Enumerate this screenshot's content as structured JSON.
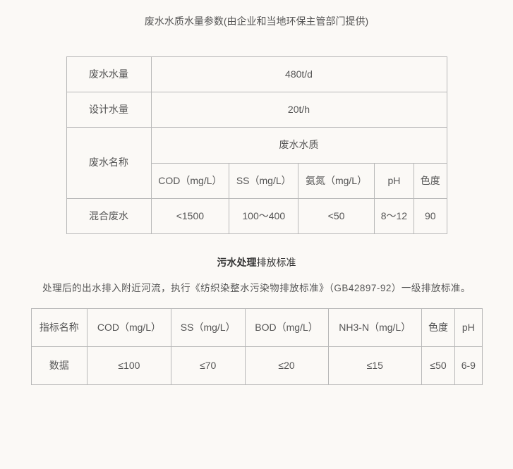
{
  "title": "废水水质水量参数(由企业和当地环保主管部门提供)",
  "table1": {
    "row1_label": "废水水量",
    "row1_value": "480t/d",
    "row2_label": "设计水量",
    "row2_value": "20t/h",
    "row3_label": "废水名称",
    "row3_header": "废水水质",
    "sub_headers": {
      "cod": "COD（mg/L）",
      "ss": "SS（mg/L）",
      "nh": "氨氮（mg/L）",
      "ph": "pH",
      "color": "色度"
    },
    "data_row": {
      "name": "混合废水",
      "cod": "<1500",
      "ss": "100～400",
      "nh": "<50",
      "ph": "8～12",
      "color": "90"
    }
  },
  "section_heading": {
    "bold": "污水处理",
    "rest": "排放标准"
  },
  "description": "处理后的出水排入附近河流，执行《纺织染整水污染物排放标准》（GB42897-92）一级排放标准。",
  "table2": {
    "headers": {
      "name": "指标名称",
      "cod": "COD（mg/L）",
      "ss": "SS（mg/L）",
      "bod": "BOD（mg/L）",
      "nh3": "NH3-N（mg/L）",
      "color": "色度",
      "ph": "pH"
    },
    "data": {
      "label": "数据",
      "cod": "≤100",
      "ss": "≤70",
      "bod": "≤20",
      "nh3": "≤15",
      "color": "≤50",
      "ph": "6-9"
    }
  },
  "styling": {
    "background_color": "#fbf9f6",
    "text_color": "#555",
    "border_color": "#b8b8b8",
    "font_family": "Microsoft YaHei",
    "base_font_size": 14
  }
}
